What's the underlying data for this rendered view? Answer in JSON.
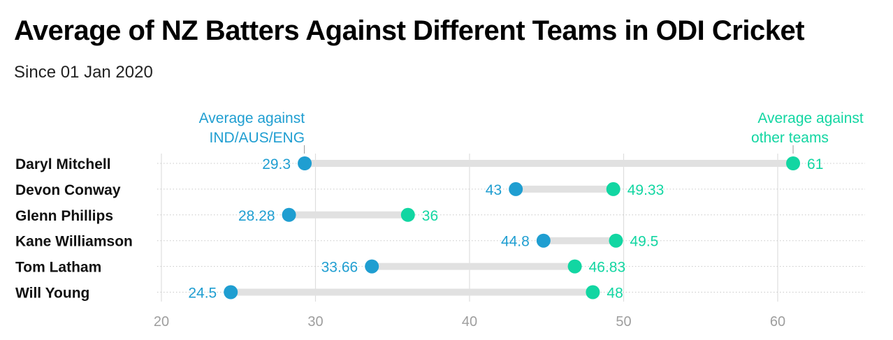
{
  "chart_data": {
    "type": "dumbbell",
    "title": "Average of NZ Batters Against Different Teams in ODI Cricket",
    "subtitle": "Since 01 Jan 2020",
    "xlim": [
      20,
      65
    ],
    "x_ticks": [
      20,
      30,
      40,
      50,
      60
    ],
    "grid": true,
    "categories": [
      "Daryl Mitchell",
      "Devon Conway",
      "Glenn Phillips",
      "Kane Williamson",
      "Tom Latham",
      "Will Young"
    ],
    "series": [
      {
        "name": "Average against IND/AUS/ENG",
        "color": "#1f9ed1",
        "values": [
          29.3,
          43,
          28.28,
          44.8,
          33.66,
          24.5
        ],
        "value_labels": [
          "29.3",
          "43",
          "28.28",
          "44.8",
          "33.66",
          "24.5"
        ],
        "annotation": [
          "Average against",
          "IND/AUS/ENG"
        ]
      },
      {
        "name": "Average against other teams",
        "color": "#12d6a2",
        "values": [
          61,
          49.33,
          36,
          49.5,
          46.83,
          48
        ],
        "value_labels": [
          "61",
          "49.33",
          "36",
          "49.5",
          "46.83",
          "48"
        ],
        "annotation": [
          "Average against",
          "other teams"
        ]
      }
    ],
    "colors": {
      "connector": "#e1e1e1",
      "gridline": "#dedede",
      "row_dots": "#c8c8c8",
      "tick_label": "#9e9e9e",
      "category_label": "#111111"
    }
  }
}
